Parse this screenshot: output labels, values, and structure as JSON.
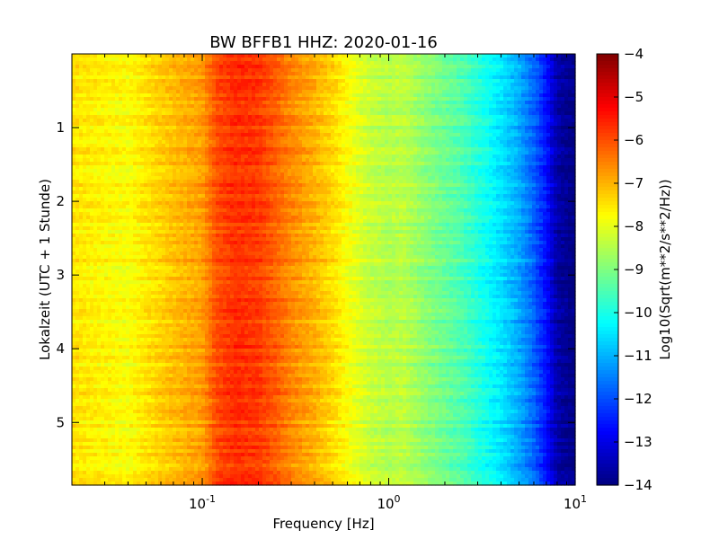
{
  "chart_data": {
    "type": "heatmap",
    "title": "BW BFFB1 HHZ: 2020-01-16",
    "xlabel": "Frequency [Hz]",
    "ylabel": "Lokalzeit (UTC + 1 Stunde)",
    "xscale": "log",
    "xlim": [
      0.02,
      10
    ],
    "ylim": [
      5.85,
      0
    ],
    "y_inverted": true,
    "x_ticks": [
      {
        "value": 0.1,
        "base": "10",
        "exp": "-1"
      },
      {
        "value": 1,
        "base": "10",
        "exp": "0"
      },
      {
        "value": 10,
        "base": "10",
        "exp": "1"
      }
    ],
    "y_ticks": [
      {
        "value": 1,
        "label": "1"
      },
      {
        "value": 2,
        "label": "2"
      },
      {
        "value": 3,
        "label": "3"
      },
      {
        "value": 4,
        "label": "4"
      },
      {
        "value": 5,
        "label": "5"
      }
    ],
    "colorbar": {
      "label": "Log10(Sqrt(m**2/s**2/Hz))",
      "colormap": "jet",
      "range": [
        -14,
        -4
      ],
      "ticks": [
        {
          "value": -4,
          "label": "−4"
        },
        {
          "value": -5,
          "label": "−5"
        },
        {
          "value": -6,
          "label": "−6"
        },
        {
          "value": -7,
          "label": "−7"
        },
        {
          "value": -8,
          "label": "−8"
        },
        {
          "value": -9,
          "label": "−9"
        },
        {
          "value": -10,
          "label": "−10"
        },
        {
          "value": -11,
          "label": "−11"
        },
        {
          "value": -12,
          "label": "−12"
        },
        {
          "value": -13,
          "label": "−13"
        },
        {
          "value": -14,
          "label": "−14"
        }
      ]
    },
    "spectrum_profile": {
      "frequency_hz": [
        0.02,
        0.04,
        0.06,
        0.08,
        0.1,
        0.12,
        0.15,
        0.2,
        0.25,
        0.3,
        0.4,
        0.5,
        0.6,
        0.7,
        0.8,
        1.0,
        1.2,
        1.5,
        2.0,
        2.5,
        3.0,
        4.0,
        5.0,
        6.0,
        7.0,
        8.0,
        10.0
      ],
      "log10_amplitude": [
        -7.5,
        -7.8,
        -7.3,
        -7.0,
        -6.8,
        -6.0,
        -5.7,
        -5.8,
        -6.2,
        -6.6,
        -7.0,
        -7.4,
        -7.8,
        -8.1,
        -8.3,
        -8.5,
        -8.4,
        -8.8,
        -9.2,
        -9.5,
        -9.9,
        -10.5,
        -11.1,
        -11.8,
        -12.6,
        -13.6,
        -14.0
      ]
    }
  }
}
